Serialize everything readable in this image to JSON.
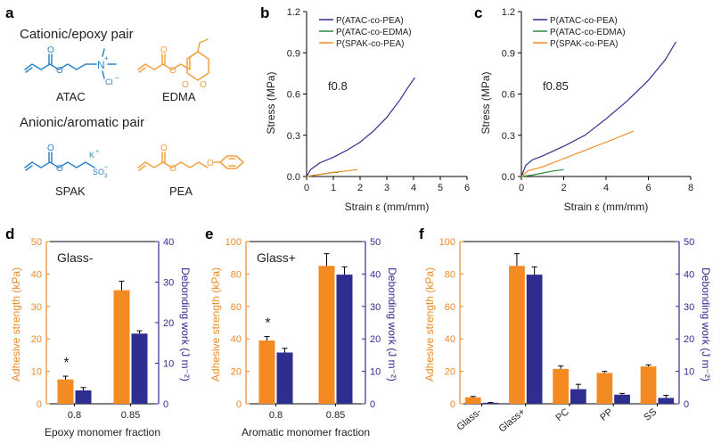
{
  "colors": {
    "blue_mol": "#2b84c6",
    "orange_mol": "#f0a040",
    "navy": "#2e2e8c",
    "green": "#2e8b3e",
    "orange": "#f08c28",
    "bar_orange": "#f48a22",
    "bar_navy": "#2e2e90"
  },
  "panel_a": {
    "panel_label": "a",
    "heading_top": "Cationic/epoxy pair",
    "heading_bottom": "Anionic/aromatic pair",
    "molecules": {
      "atac": "ATAC",
      "edma": "EDMA",
      "spak": "SPAK",
      "pea": "PEA"
    },
    "atoms": {
      "o": "O",
      "n": "N",
      "n_charge": "+",
      "cl": "Cl",
      "cl_charge": "−",
      "k": "K",
      "k_charge": "+",
      "so3": "SO",
      "so3_sub": "3",
      "so3_charge": "−"
    }
  },
  "chart_data": [
    {
      "panel": "b",
      "type": "line",
      "annotation": "f0.8",
      "xlabel": "Strain ε (mm/mm)",
      "ylabel": "Stress (MPa)",
      "xlim": [
        0,
        6
      ],
      "ylim": [
        0,
        1.2
      ],
      "xticks": [
        "0",
        "1",
        "2",
        "3",
        "4",
        "5",
        "6"
      ],
      "yticks": [
        "0.0",
        "0.3",
        "0.6",
        "0.9",
        "1.2"
      ],
      "legend_position": "top",
      "series": [
        {
          "name": "P(ATAC-co-PEA)",
          "color": "#2e2e8c",
          "x": [
            0,
            0.15,
            0.5,
            1.0,
            1.5,
            2.0,
            2.5,
            3.0,
            3.5,
            3.8,
            4.05
          ],
          "y": [
            0,
            0.05,
            0.1,
            0.14,
            0.19,
            0.25,
            0.33,
            0.43,
            0.56,
            0.65,
            0.72
          ]
        },
        {
          "name": "P(ATAC-co-EDMA)",
          "color": "#2e8b3e",
          "x": [
            0,
            0.3,
            0.7,
            1.0,
            1.2
          ],
          "y": [
            0,
            0.01,
            0.02,
            0.03,
            0.03
          ]
        },
        {
          "name": "P(SPAK-co-PEA)",
          "color": "#f08c28",
          "x": [
            0,
            0.5,
            1.0,
            1.5,
            1.9
          ],
          "y": [
            0,
            0.015,
            0.03,
            0.04,
            0.05
          ]
        }
      ]
    },
    {
      "panel": "c",
      "type": "line",
      "annotation": "f0.85",
      "xlabel": "Strain ε (mm/mm)",
      "ylabel": "Stress (MPa)",
      "xlim": [
        0,
        8
      ],
      "ylim": [
        0,
        1.2
      ],
      "xticks": [
        "0",
        "2",
        "4",
        "6",
        "8"
      ],
      "yticks": [
        "0.0",
        "0.3",
        "0.6",
        "0.9",
        "1.2"
      ],
      "legend_position": "top",
      "series": [
        {
          "name": "P(ATAC-co-PEA)",
          "color": "#2e2e8c",
          "x": [
            0,
            0.2,
            0.5,
            1,
            2,
            3,
            4,
            5,
            6,
            6.8,
            7.3
          ],
          "y": [
            0,
            0.08,
            0.12,
            0.15,
            0.22,
            0.3,
            0.42,
            0.55,
            0.7,
            0.85,
            0.98
          ]
        },
        {
          "name": "P(ATAC-co-EDMA)",
          "color": "#2e8b3e",
          "x": [
            0,
            0.5,
            1.0,
            1.5,
            2.0
          ],
          "y": [
            0,
            0.01,
            0.025,
            0.04,
            0.05
          ]
        },
        {
          "name": "P(SPAK-co-PEA)",
          "color": "#f08c28",
          "x": [
            0,
            0.3,
            1,
            2,
            3,
            4,
            5.3
          ],
          "y": [
            0,
            0.04,
            0.07,
            0.13,
            0.19,
            0.25,
            0.33
          ]
        }
      ]
    },
    {
      "panel": "d",
      "type": "bar",
      "annotation": "Glass-",
      "categories": [
        "0.8",
        "0.85"
      ],
      "xlabel": "Epoxy monomer fraction",
      "ylabel": "Adhesive strength (kPa)",
      "ylabel2": "Debonding work (J m⁻²)",
      "ylim": [
        0,
        50
      ],
      "ylim2": [
        0,
        40
      ],
      "yticks": [
        "0",
        "10",
        "20",
        "30",
        "40",
        "50"
      ],
      "yticks2": [
        "0",
        "10",
        "20",
        "30",
        "40"
      ],
      "series": [
        {
          "axis": "left",
          "color": "#f48a22",
          "values": [
            7.5,
            35
          ],
          "errors": [
            1,
            2.8
          ]
        },
        {
          "axis": "right",
          "color": "#2e2e90",
          "values": [
            3.3,
            17.3
          ],
          "errors": [
            0.7,
            0.7
          ]
        }
      ],
      "markers": [
        {
          "category": "0.8",
          "text": "*"
        }
      ]
    },
    {
      "panel": "e",
      "type": "bar",
      "annotation": "Glass+",
      "categories": [
        "0.8",
        "0.85"
      ],
      "xlabel": "Aromatic monomer fraction",
      "ylabel": "Adhesive strength (kPa)",
      "ylabel2": "Debonding work (J m⁻²)",
      "ylim": [
        0,
        100
      ],
      "ylim2": [
        0,
        50
      ],
      "yticks": [
        "0",
        "20",
        "40",
        "60",
        "80",
        "100"
      ],
      "yticks2": [
        "0",
        "10",
        "20",
        "30",
        "40",
        "50"
      ],
      "series": [
        {
          "axis": "left",
          "color": "#f48a22",
          "values": [
            39,
            85
          ],
          "errors": [
            2.5,
            7.5
          ]
        },
        {
          "axis": "right",
          "color": "#2e2e90",
          "values": [
            15.8,
            39.8
          ],
          "errors": [
            1.3,
            2.4
          ]
        }
      ],
      "markers": [
        {
          "category": "0.8",
          "text": "*"
        }
      ]
    },
    {
      "panel": "f",
      "type": "bar",
      "categories": [
        "Glass-",
        "Glass+",
        "PC",
        "PP",
        "SS"
      ],
      "ylabel": "Adhesive strength (kPa)",
      "ylabel2": "Debonding work (J m⁻²)",
      "ylim": [
        0,
        100
      ],
      "ylim2": [
        0,
        50
      ],
      "yticks": [
        "0",
        "20",
        "40",
        "60",
        "80",
        "100"
      ],
      "yticks2": [
        "0",
        "10",
        "20",
        "30",
        "40",
        "50"
      ],
      "series": [
        {
          "axis": "left",
          "color": "#f48a22",
          "values": [
            4,
            85,
            21.5,
            19,
            23
          ],
          "errors": [
            0.5,
            7.5,
            1.8,
            1,
            1
          ]
        },
        {
          "axis": "right",
          "color": "#2e2e90",
          "values": [
            0.3,
            39.8,
            4.5,
            2.8,
            1.8
          ],
          "errors": [
            0.1,
            2.4,
            1.5,
            0.4,
            0.8
          ]
        }
      ]
    }
  ]
}
